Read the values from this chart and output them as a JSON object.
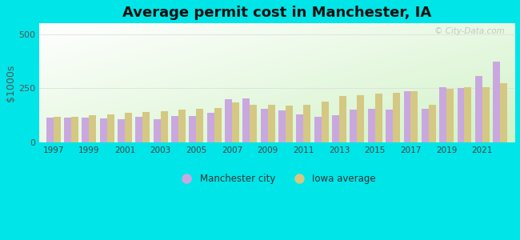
{
  "title": "Average permit cost in Manchester, IA",
  "ylabel": "$1000s",
  "years": [
    1997,
    1998,
    1999,
    2000,
    2001,
    2002,
    2003,
    2004,
    2005,
    2006,
    2007,
    2008,
    2009,
    2010,
    2011,
    2012,
    2013,
    2014,
    2015,
    2016,
    2017,
    2018,
    2019,
    2020,
    2021,
    2022
  ],
  "manchester": [
    115,
    115,
    113,
    110,
    108,
    120,
    108,
    122,
    122,
    135,
    200,
    205,
    155,
    148,
    130,
    120,
    125,
    150,
    155,
    150,
    235,
    155,
    255,
    250,
    305,
    375
  ],
  "iowa": [
    118,
    118,
    125,
    128,
    135,
    140,
    145,
    150,
    155,
    160,
    185,
    175,
    172,
    170,
    175,
    190,
    215,
    218,
    225,
    230,
    235,
    175,
    248,
    255,
    255,
    272
  ],
  "city_color": "#c9a8e0",
  "iowa_color": "#d4c882",
  "ylim": [
    0,
    550
  ],
  "yticks": [
    0,
    250,
    500
  ],
  "background_outer": "#00e5e8",
  "watermark": "© City-Data.com",
  "bar_width": 0.4,
  "title_fontsize": 13
}
